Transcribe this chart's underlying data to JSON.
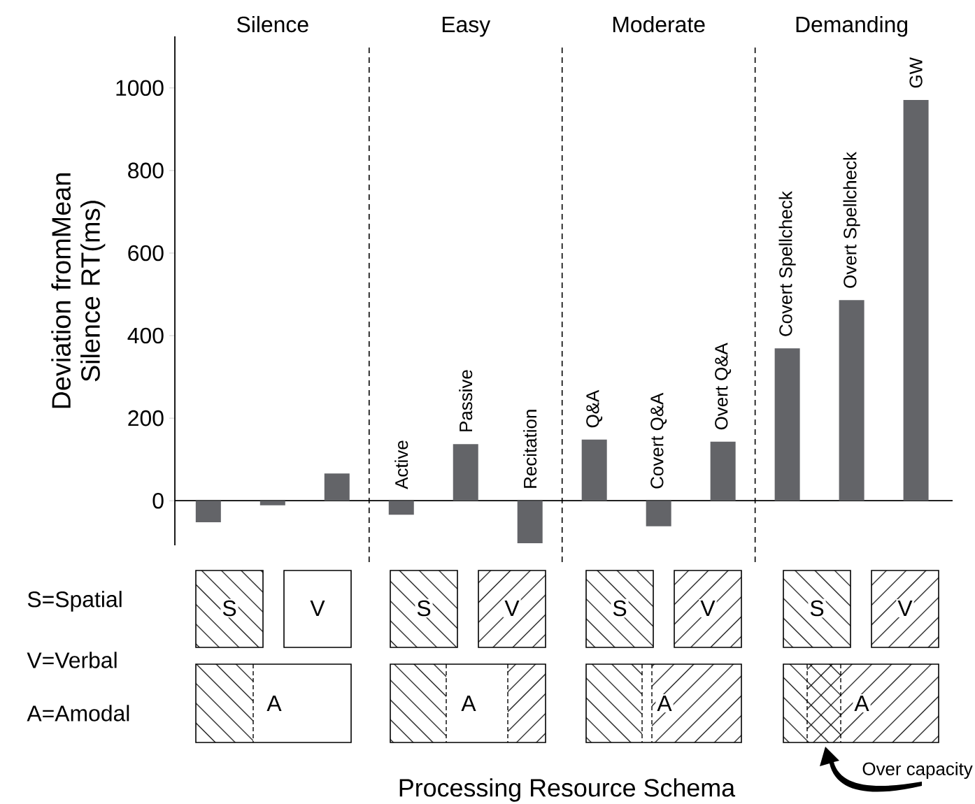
{
  "chart_data": {
    "type": "bar",
    "ylabel": "Deviation fromMean Silence RT(ms)",
    "categories": [
      null,
      null,
      null,
      "Active",
      "Passive",
      "Recitation",
      "Q&A",
      "Covert Q&A",
      "Overt Q&A",
      "Covert Spellcheck",
      "Overt Spellcheck",
      "GW"
    ],
    "values": [
      -52,
      -11,
      66,
      -34,
      137,
      -103,
      148,
      -62,
      143,
      369,
      486,
      971
    ],
    "color": "#636468",
    "ylim": [
      -108,
      1125
    ],
    "yticks": [
      0,
      200,
      400,
      600,
      800,
      1000
    ],
    "annotations": [
      "Silence",
      "Easy",
      "Moderate",
      "Demanding",
      "S=Spatial",
      "V=Verbal",
      "A=Amodal",
      "S",
      "V",
      "A",
      "S",
      "V",
      "A",
      "S",
      "V",
      "A",
      "S",
      "V",
      "A",
      "Over capacity",
      "Processing Resource Schema"
    ]
  }
}
